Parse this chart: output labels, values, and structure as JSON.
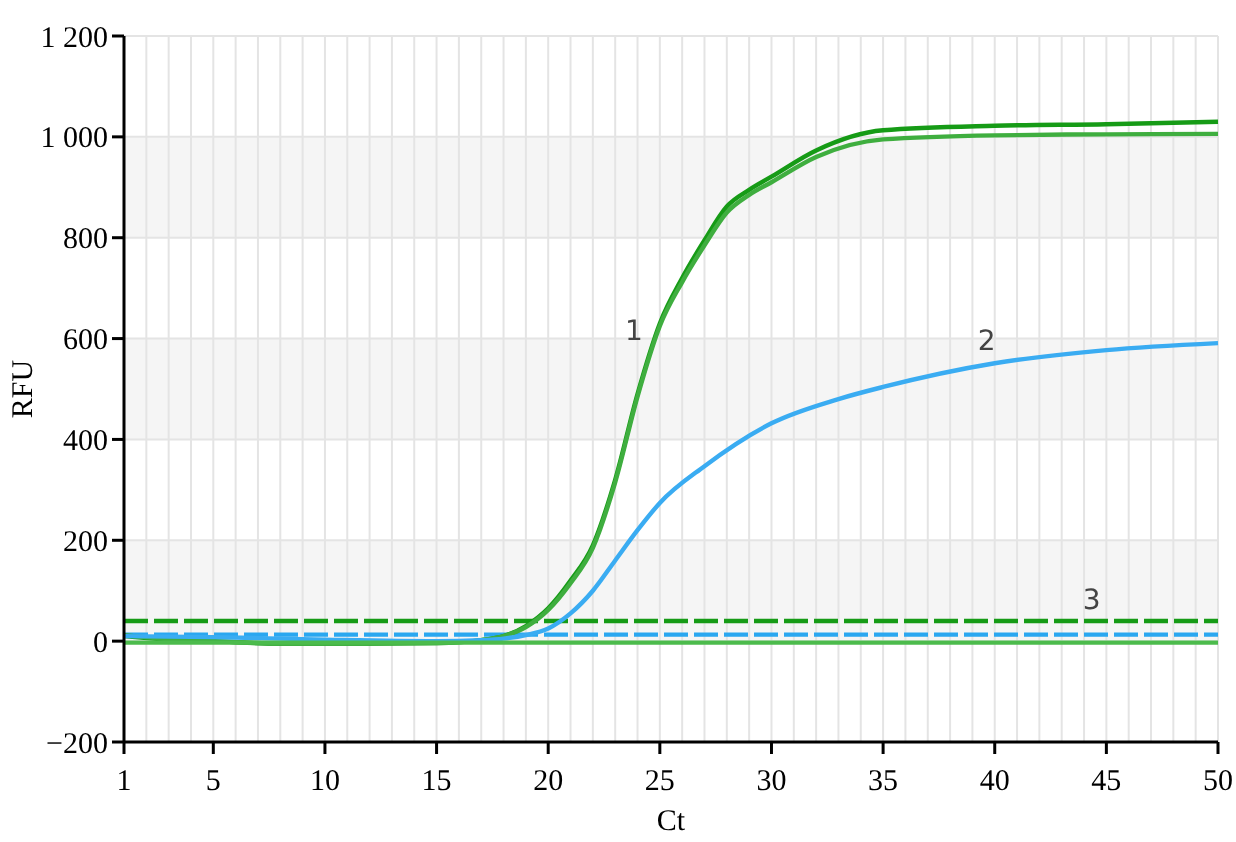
{
  "chart_data": {
    "type": "line",
    "xlabel": "Ct",
    "ylabel": "RFU",
    "xlim": [
      1,
      50
    ],
    "ylim": [
      -200,
      1200
    ],
    "xticks": [
      1,
      {
        "value": 2,
        "label": null
      },
      {
        "value": 3,
        "label": null
      },
      {
        "value": 4,
        "label": null
      },
      5,
      {
        "value": 6,
        "label": null
      },
      {
        "value": 7,
        "label": null
      },
      {
        "value": 8,
        "label": null
      },
      {
        "value": 9,
        "label": null
      },
      10,
      {
        "value": 11,
        "label": null
      },
      {
        "value": 12,
        "label": null
      },
      {
        "value": 13,
        "label": null
      },
      {
        "value": 14,
        "label": null
      },
      15,
      {
        "value": 16,
        "label": null
      },
      {
        "value": 17,
        "label": null
      },
      {
        "value": 18,
        "label": null
      },
      {
        "value": 19,
        "label": null
      },
      20,
      {
        "value": 21,
        "label": null
      },
      {
        "value": 22,
        "label": null
      },
      {
        "value": 23,
        "label": null
      },
      {
        "value": 24,
        "label": null
      },
      25,
      {
        "value": 26,
        "label": null
      },
      {
        "value": 27,
        "label": null
      },
      {
        "value": 28,
        "label": null
      },
      {
        "value": 29,
        "label": null
      },
      30,
      {
        "value": 31,
        "label": null
      },
      {
        "value": 32,
        "label": null
      },
      {
        "value": 33,
        "label": null
      },
      {
        "value": 34,
        "label": null
      },
      35,
      {
        "value": 36,
        "label": null
      },
      {
        "value": 37,
        "label": null
      },
      {
        "value": 38,
        "label": null
      },
      {
        "value": 39,
        "label": null
      },
      40,
      {
        "value": 41,
        "label": null
      },
      {
        "value": 42,
        "label": null
      },
      {
        "value": 43,
        "label": null
      },
      {
        "value": 44,
        "label": null
      },
      45,
      {
        "value": 46,
        "label": null
      },
      {
        "value": 47,
        "label": null
      },
      {
        "value": 48,
        "label": null
      },
      {
        "value": 49,
        "label": null
      },
      50
    ],
    "yticks": [
      {
        "value": -200,
        "label": "−200"
      },
      0,
      200,
      400,
      600,
      800,
      {
        "value": 1000,
        "label": "1 000"
      },
      {
        "value": 1200,
        "label": "1 200"
      }
    ],
    "grid": true,
    "line_style": "solid",
    "bands": [
      {
        "axis": "y",
        "from": 0,
        "to": 200,
        "color": "#f5f5f5"
      },
      {
        "axis": "y",
        "from": 400,
        "to": 600,
        "color": "#f5f5f5"
      },
      {
        "axis": "y",
        "from": 800,
        "to": 1000,
        "color": "#f5f5f5"
      }
    ],
    "ref_lines": [
      {
        "axis": "y",
        "value": 40,
        "color": "#169b16",
        "line_style": "dashed"
      },
      {
        "axis": "y",
        "value": 13,
        "color": "#2aa7f0",
        "line_style": "dashed"
      }
    ],
    "series": [
      {
        "color": "#169b16",
        "x": [
          1,
          3,
          5,
          8,
          10,
          12,
          15,
          17,
          18,
          19,
          20,
          21,
          22,
          23,
          24,
          25,
          26,
          27,
          28,
          29,
          30,
          32,
          35,
          40,
          45,
          50
        ],
        "values": [
          10,
          3,
          0,
          -5,
          -5,
          -5,
          -4,
          2,
          10,
          30,
          65,
          120,
          190,
          320,
          490,
          630,
          720,
          795,
          862,
          895,
          921,
          973,
          1013,
          1022,
          1025,
          1030
        ]
      },
      {
        "color": "#3fae3f",
        "x": [
          1,
          3,
          5,
          8,
          10,
          12,
          15,
          17,
          18,
          19,
          20,
          21,
          22,
          23,
          24,
          25,
          26,
          27,
          28,
          29,
          30,
          32,
          35,
          40,
          45,
          50
        ],
        "values": [
          12,
          4,
          0,
          -5,
          -5,
          -5,
          -4,
          2,
          10,
          28,
          62,
          115,
          185,
          315,
          485,
          625,
          712,
          785,
          850,
          885,
          910,
          960,
          995,
          1003,
          1005,
          1006
        ]
      },
      {
        "color": "#3aacf2",
        "x": [
          1,
          5,
          10,
          15,
          17,
          18,
          19,
          20,
          21,
          22,
          23,
          24,
          25,
          27,
          30,
          33,
          35,
          40,
          45,
          50
        ],
        "values": [
          10,
          8,
          3,
          0,
          2,
          5,
          12,
          25,
          55,
          100,
          160,
          220,
          274,
          347,
          432,
          480,
          504,
          551,
          577,
          591
        ]
      },
      {
        "color": "#4cbb4c",
        "x": [
          1,
          50
        ],
        "values": [
          -3,
          -3
        ]
      }
    ],
    "annotations": [
      {
        "text": "1",
        "x": 24.6,
        "y": 574
      },
      {
        "text": "2",
        "x": 40.4,
        "y": 553
      },
      {
        "text": "3",
        "x": 45.1,
        "y": 40
      }
    ]
  }
}
